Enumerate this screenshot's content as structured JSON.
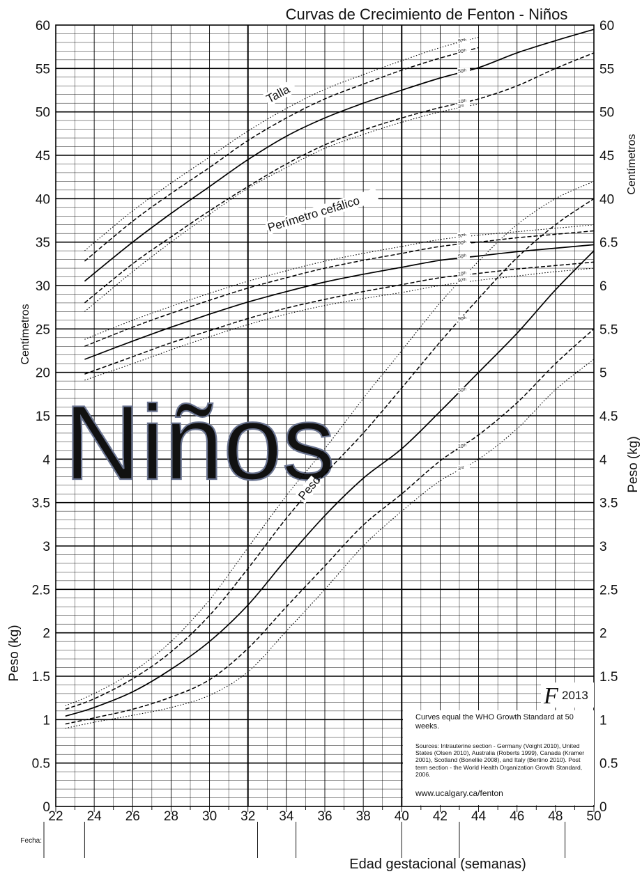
{
  "chart_data": {
    "type": "line",
    "title": "Curvas de Crecimiento de Fenton - Niños",
    "watermark": "Niños",
    "logo": "F",
    "logo_year": "2013",
    "xlabel": "Edad gestacional (semanas)",
    "date_label": "Fecha:",
    "xlim": [
      22,
      50
    ],
    "x_ticks": [
      "22",
      "24",
      "26",
      "28",
      "30",
      "32",
      "34",
      "36",
      "38",
      "40",
      "42",
      "44",
      "46",
      "48",
      "50"
    ],
    "left_axis": {
      "upper_label": "Centímetros",
      "lower_label": "Peso (kg)",
      "ticks": [
        "60",
        "55",
        "50",
        "45",
        "40",
        "35",
        "30",
        "25",
        "20",
        "15",
        "4",
        "3.5",
        "3",
        "2.5",
        "2",
        "1.5",
        "1",
        "0.5",
        "0"
      ]
    },
    "right_axis": {
      "upper_label": "Centímetros",
      "lower_label": "Peso (kg)",
      "ticks": [
        "60",
        "55",
        "50",
        "45",
        "40",
        "6.5",
        "6",
        "5.5",
        "5",
        "4.5",
        "4",
        "3.5",
        "3",
        "2.5",
        "2",
        "1.5",
        "1",
        "0.5",
        "0"
      ]
    },
    "curve_labels": [
      "Talla",
      "Perímetro cefálico",
      "Peso"
    ],
    "percentile_labels": [
      "97th",
      "90th",
      "50th",
      "10th",
      "3rd"
    ],
    "series": [
      {
        "name": "Talla",
        "percentile": "3rd",
        "x": [
          23.5,
          26,
          28,
          30,
          32,
          34,
          36,
          38,
          40,
          42,
          44
        ],
        "y": [
          27,
          31.6,
          35,
          38.2,
          41.2,
          43.6,
          45.8,
          47.4,
          48.8,
          50.0,
          50.9
        ]
      },
      {
        "name": "Talla",
        "percentile": "10th",
        "x": [
          23.5,
          26,
          28,
          30,
          32,
          34,
          36,
          38,
          40,
          42,
          44,
          46,
          48,
          50
        ],
        "y": [
          28,
          32.5,
          35.6,
          38.6,
          41.4,
          44.0,
          46.2,
          47.9,
          49.3,
          50.5,
          51.5,
          53.0,
          55.0,
          56.8
        ]
      },
      {
        "name": "Talla",
        "percentile": "50th",
        "x": [
          23.5,
          26,
          28,
          30,
          32,
          34,
          36,
          38,
          40,
          42,
          44,
          46,
          48,
          50
        ],
        "y": [
          30.5,
          35,
          38.3,
          41.4,
          44.5,
          47.2,
          49.3,
          51.0,
          52.5,
          53.9,
          55.1,
          56.8,
          58.2,
          59.5
        ]
      },
      {
        "name": "Talla",
        "percentile": "90th",
        "x": [
          23.5,
          26,
          28,
          30,
          32,
          34,
          36,
          38,
          40,
          42,
          44
        ],
        "y": [
          32.8,
          37.4,
          40.6,
          43.6,
          46.7,
          49.3,
          51.5,
          53.2,
          54.8,
          56.2,
          57.4
        ]
      },
      {
        "name": "Talla",
        "percentile": "97th",
        "x": [
          23.5,
          26,
          28,
          30,
          32,
          34,
          36,
          38,
          40,
          42,
          44
        ],
        "y": [
          34,
          38.6,
          41.8,
          44.8,
          47.8,
          50.4,
          52.6,
          54.3,
          55.9,
          57.4,
          58.6
        ]
      },
      {
        "name": "Perímetro cefálico",
        "percentile": "3rd",
        "x": [
          23.5,
          26,
          28,
          30,
          32,
          34,
          36,
          38,
          40,
          42,
          44,
          46,
          48,
          50
        ],
        "y": [
          19.1,
          21.0,
          22.6,
          24.1,
          25.5,
          26.7,
          27.7,
          28.5,
          29.2,
          30.0,
          30.6,
          31.1,
          31.6,
          32.0
        ]
      },
      {
        "name": "Perímetro cefálico",
        "percentile": "10th",
        "x": [
          23.5,
          26,
          28,
          30,
          32,
          34,
          36,
          38,
          40,
          42,
          44,
          46,
          48,
          50
        ],
        "y": [
          19.8,
          21.8,
          23.4,
          24.8,
          26.2,
          27.4,
          28.4,
          29.3,
          30.1,
          30.9,
          31.4,
          31.9,
          32.3,
          32.7
        ]
      },
      {
        "name": "Perímetro cefálico",
        "percentile": "50th",
        "x": [
          23.5,
          26,
          28,
          30,
          32,
          34,
          36,
          38,
          40,
          42,
          44,
          46,
          48,
          50
        ],
        "y": [
          21.5,
          23.6,
          25.2,
          26.7,
          28.1,
          29.3,
          30.4,
          31.3,
          32.1,
          32.9,
          33.4,
          33.9,
          34.3,
          34.7
        ]
      },
      {
        "name": "Perímetro cefálico",
        "percentile": "90th",
        "x": [
          23.5,
          26,
          28,
          30,
          32,
          34,
          36,
          38,
          40,
          42,
          44,
          46,
          48,
          50
        ],
        "y": [
          23.0,
          25.2,
          26.8,
          28.3,
          29.7,
          30.9,
          32.0,
          32.9,
          33.7,
          34.5,
          35.0,
          35.5,
          35.9,
          36.3
        ]
      },
      {
        "name": "Perímetro cefálico",
        "percentile": "97th",
        "x": [
          23.5,
          26,
          28,
          30,
          32,
          34,
          36,
          38,
          40,
          42,
          44,
          46,
          48,
          50
        ],
        "y": [
          23.8,
          26.0,
          27.6,
          29.1,
          30.5,
          31.7,
          32.8,
          33.7,
          34.5,
          35.3,
          35.8,
          36.2,
          36.6,
          37.0
        ]
      },
      {
        "name": "Peso",
        "percentile": "3rd",
        "x": [
          22.5,
          24,
          26,
          28,
          30,
          32,
          34,
          36,
          38,
          40,
          42,
          44,
          46,
          48,
          50
        ],
        "y": [
          0.4,
          0.47,
          0.55,
          0.64,
          0.78,
          1.05,
          1.52,
          2.0,
          2.5,
          2.9,
          3.25,
          3.5,
          3.85,
          4.3,
          4.65
        ]
      },
      {
        "name": "Peso",
        "percentile": "10th",
        "x": [
          22.5,
          24,
          26,
          28,
          30,
          32,
          34,
          36,
          38,
          40,
          42,
          44,
          46,
          48,
          50
        ],
        "y": [
          0.45,
          0.52,
          0.62,
          0.76,
          0.96,
          1.32,
          1.8,
          2.27,
          2.74,
          3.1,
          3.48,
          3.78,
          4.15,
          4.6,
          5.0
        ]
      },
      {
        "name": "Peso",
        "percentile": "50th",
        "x": [
          22.5,
          24,
          26,
          28,
          30,
          32,
          34,
          36,
          38,
          40,
          42,
          44,
          46,
          48,
          50
        ],
        "y": [
          0.54,
          0.64,
          0.82,
          1.08,
          1.4,
          1.82,
          2.35,
          2.85,
          3.28,
          3.62,
          4.05,
          4.5,
          4.95,
          5.45,
          5.9
        ]
      },
      {
        "name": "Peso",
        "percentile": "90th",
        "x": [
          22.5,
          24,
          26,
          28,
          30,
          32,
          34,
          36,
          38,
          40,
          42,
          44,
          46,
          48,
          50
        ],
        "y": [
          0.62,
          0.74,
          0.97,
          1.28,
          1.7,
          2.24,
          2.82,
          3.33,
          3.8,
          4.32,
          4.85,
          5.35,
          5.82,
          6.2,
          6.5
        ]
      },
      {
        "name": "Peso",
        "percentile": "97th",
        "x": [
          22.5,
          24,
          26,
          28,
          30,
          32,
          34,
          36,
          38,
          40,
          42,
          44,
          46,
          48,
          50
        ],
        "y": [
          0.66,
          0.8,
          1.05,
          1.4,
          1.88,
          2.48,
          3.08,
          3.62,
          4.2,
          4.75,
          5.3,
          5.78,
          6.2,
          6.5,
          6.7
        ]
      }
    ],
    "colors": {
      "grid": "#000000",
      "curve": "#000000",
      "watermark_fill": "#c6cde3",
      "watermark_stroke": "#6b7592"
    }
  },
  "info": {
    "main": "Curves equal the WHO Growth Standard at 50 weeks.",
    "sources": "Sources: Intrauterine section - Germany (Voight 2010), United States (Olsen 2010), Australia (Roberts 1999), Canada (Kramer 2001), Scotland (Bonellie 2008), and Italy (Bertino 2010). Post term section - the World Health Organization Growth Standard, 2006.",
    "url": "www.ucalgary.ca/fenton"
  }
}
